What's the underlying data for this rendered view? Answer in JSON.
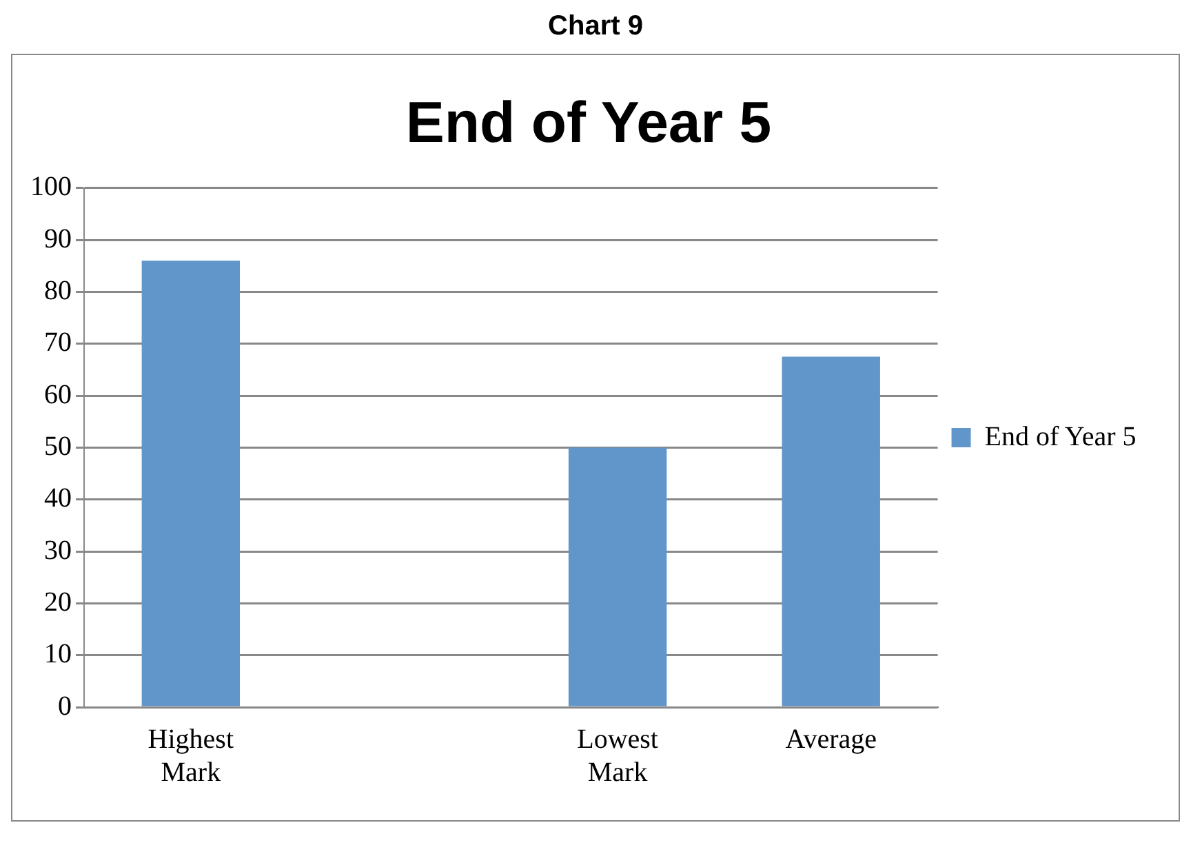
{
  "chart_data": {
    "type": "bar",
    "title": "End of Year 5",
    "annotations": [
      "Chart 9"
    ],
    "categories": [
      "Highest Mark",
      null,
      "Lowest Mark",
      "Average"
    ],
    "series": [
      {
        "name": "End of Year 5",
        "color": "#6096c9",
        "values": [
          86,
          null,
          50,
          67.5
        ]
      }
    ],
    "ylim": [
      0,
      100
    ],
    "yticks": [
      0,
      10,
      20,
      30,
      40,
      50,
      60,
      70,
      80,
      90,
      100
    ],
    "grid": "y",
    "legend": "right"
  }
}
